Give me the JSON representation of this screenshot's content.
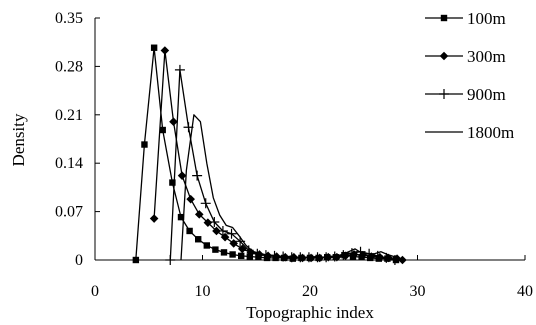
{
  "chart_data": {
    "type": "line",
    "xlabel": "Topographic index",
    "ylabel": "Density",
    "xlim": [
      0,
      40
    ],
    "ylim": [
      0,
      0.35
    ],
    "xticks": [
      "0",
      "10",
      "20",
      "30",
      "40"
    ],
    "yticks": [
      "0",
      "0.07",
      "0.14",
      "0.21",
      "0.28",
      "0.35"
    ],
    "grid": false,
    "legend_position": "right",
    "series": [
      {
        "name": "100m",
        "marker": "square",
        "x": [
          3.8,
          4.6,
          5.5,
          6.3,
          7.2,
          8.0,
          8.8,
          9.6,
          10.4,
          11.2,
          12.0,
          12.8,
          13.6,
          14.4,
          15.2,
          16.0,
          16.8,
          17.6,
          18.4,
          19.2,
          20.0,
          20.8,
          21.6,
          22.4,
          23.2,
          24.0,
          24.8,
          25.6,
          26.4,
          27.2,
          28.0
        ],
        "y": [
          0.0,
          0.167,
          0.307,
          0.188,
          0.112,
          0.062,
          0.042,
          0.03,
          0.021,
          0.015,
          0.011,
          0.008,
          0.006,
          0.005,
          0.004,
          0.003,
          0.003,
          0.003,
          0.002,
          0.003,
          0.003,
          0.003,
          0.004,
          0.004,
          0.007,
          0.005,
          0.004,
          0.003,
          0.002,
          0.002,
          0.0
        ]
      },
      {
        "name": "300m",
        "marker": "diamond",
        "x": [
          5.5,
          6.5,
          7.3,
          8.1,
          8.9,
          9.7,
          10.5,
          11.3,
          12.1,
          12.9,
          13.7,
          14.5,
          15.3,
          16.1,
          16.9,
          17.7,
          18.5,
          19.3,
          20.1,
          20.9,
          21.7,
          22.5,
          23.3,
          24.1,
          24.9,
          25.7,
          26.5,
          27.3,
          28.1,
          28.6
        ],
        "y": [
          0.06,
          0.303,
          0.2,
          0.122,
          0.088,
          0.066,
          0.054,
          0.042,
          0.033,
          0.024,
          0.016,
          0.011,
          0.008,
          0.006,
          0.005,
          0.004,
          0.004,
          0.003,
          0.003,
          0.003,
          0.004,
          0.004,
          0.006,
          0.008,
          0.007,
          0.005,
          0.004,
          0.003,
          0.002,
          0.0
        ]
      },
      {
        "name": "900m",
        "marker": "plus",
        "x": [
          7.0,
          7.9,
          8.7,
          9.5,
          10.3,
          11.1,
          11.9,
          12.7,
          13.5,
          14.3,
          15.1,
          15.9,
          16.7,
          17.5,
          18.3,
          19.1,
          19.9,
          20.7,
          21.5,
          22.3,
          23.1,
          23.9,
          24.7,
          25.5,
          26.3,
          27.1,
          27.9
        ],
        "y": [
          0.0,
          0.275,
          0.192,
          0.122,
          0.082,
          0.055,
          0.042,
          0.038,
          0.027,
          0.014,
          0.009,
          0.007,
          0.006,
          0.005,
          0.004,
          0.004,
          0.004,
          0.004,
          0.004,
          0.005,
          0.007,
          0.01,
          0.012,
          0.009,
          0.006,
          0.003,
          0.0
        ]
      },
      {
        "name": "1800m",
        "marker": "none",
        "x": [
          8.0,
          8.5,
          9.2,
          9.8,
          10.4,
          11.0,
          11.6,
          12.2,
          12.8,
          13.4,
          14.0,
          14.6,
          15.2,
          15.8,
          16.4,
          17.0,
          17.6,
          18.2,
          18.8,
          19.4,
          20.0,
          20.6,
          21.2,
          21.8,
          22.4,
          23.0,
          23.6,
          24.2,
          24.8,
          25.4,
          26.0,
          26.6,
          27.2,
          27.8,
          28.2
        ],
        "y": [
          0.0,
          0.13,
          0.21,
          0.2,
          0.14,
          0.09,
          0.065,
          0.05,
          0.047,
          0.035,
          0.022,
          0.013,
          0.01,
          0.008,
          0.007,
          0.006,
          0.005,
          0.005,
          0.004,
          0.004,
          0.004,
          0.005,
          0.004,
          0.005,
          0.006,
          0.008,
          0.012,
          0.016,
          0.01,
          0.006,
          0.009,
          0.012,
          0.008,
          0.005,
          0.0
        ]
      }
    ]
  }
}
